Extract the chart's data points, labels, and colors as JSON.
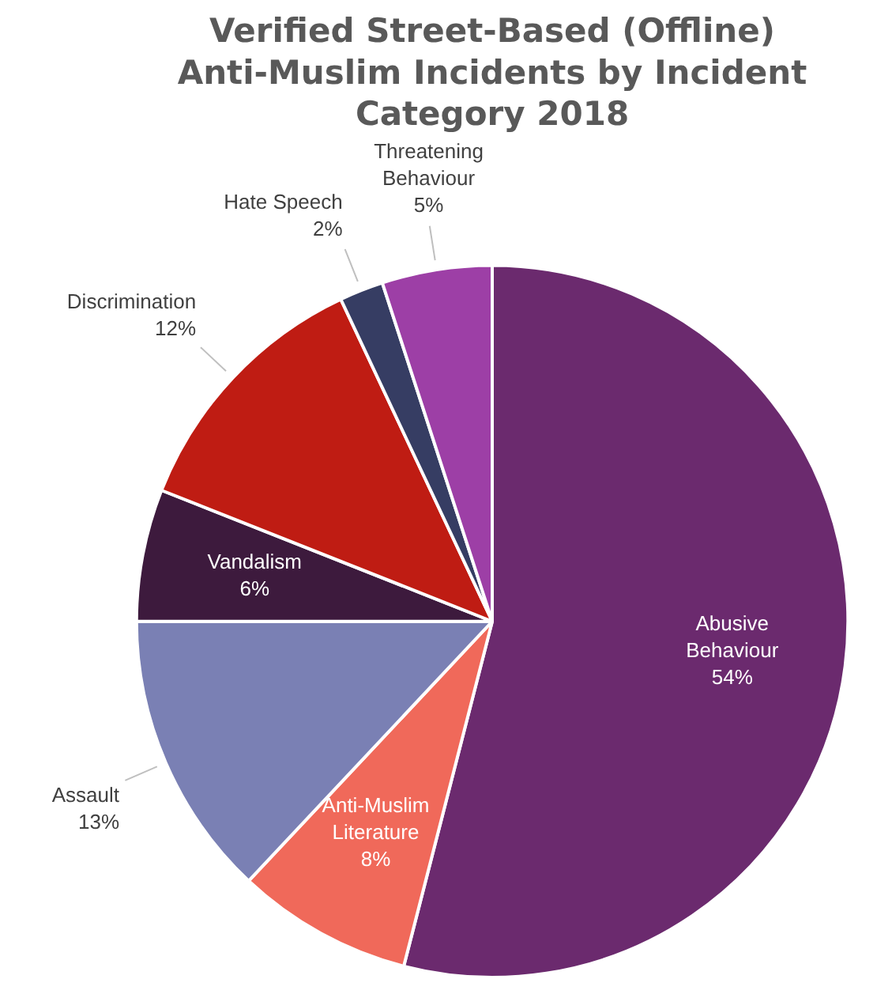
{
  "chart_data": {
    "type": "pie",
    "title": "Verified Street-Based (Offline) Anti-Muslim Incidents by Incident Category 2018",
    "categories": [
      "Abusive Behaviour",
      "Anti-Muslim Literature",
      "Assault",
      "Vandalism",
      "Discrimination",
      "Hate Speech",
      "Threatening Behaviour"
    ],
    "values": [
      54,
      8,
      13,
      6,
      12,
      2,
      5
    ],
    "value_labels": [
      "54%",
      "8%",
      "13%",
      "6%",
      "12%",
      "2%",
      "5%"
    ],
    "colors": [
      "#6b2a6e",
      "#f0695a",
      "#7a80b4",
      "#3d1a3d",
      "#bf1c13",
      "#363d63",
      "#9d3fa6"
    ],
    "legend": false
  }
}
